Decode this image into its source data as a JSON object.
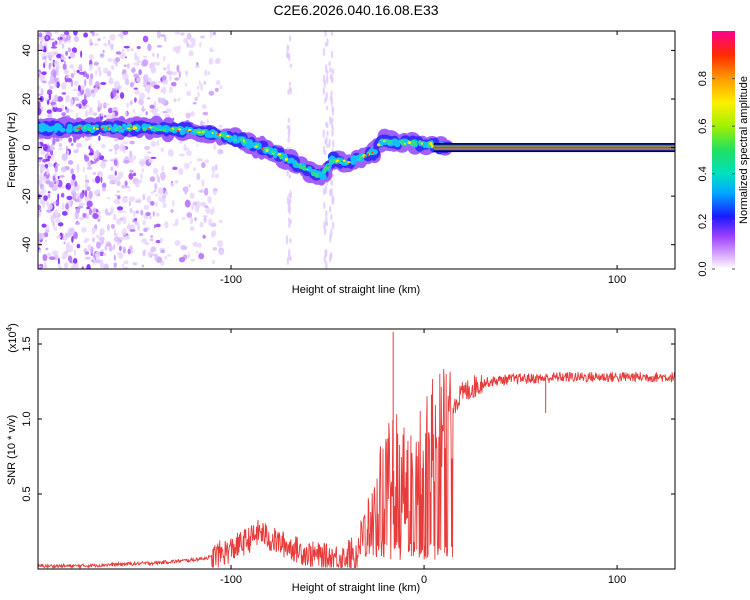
{
  "title": "C2E6.2026.040.16.08.E33",
  "chart_data": [
    {
      "type": "heatmap",
      "name": "spectrogram",
      "xlabel": "Height of straight line (km)",
      "ylabel": "Frequency (Hz)",
      "xlim": [
        -200,
        130
      ],
      "ylim": [
        -50,
        48
      ],
      "xticks": [
        -100,
        100
      ],
      "yticks": [
        -40,
        -20,
        0,
        20,
        40
      ],
      "colorbar": {
        "label": "Normalized spectral amplitude",
        "range": [
          0,
          1
        ],
        "ticks": [
          0.0,
          0.2,
          0.4,
          0.6,
          0.8
        ]
      },
      "ridge": [
        {
          "x": -200,
          "y": 8
        },
        {
          "x": -180,
          "y": 8
        },
        {
          "x": -160,
          "y": 8
        },
        {
          "x": -140,
          "y": 8
        },
        {
          "x": -120,
          "y": 7
        },
        {
          "x": -105,
          "y": 5
        },
        {
          "x": -95,
          "y": 3
        },
        {
          "x": -85,
          "y": 0
        },
        {
          "x": -75,
          "y": -3
        },
        {
          "x": -65,
          "y": -7
        },
        {
          "x": -58,
          "y": -10
        },
        {
          "x": -53,
          "y": -12
        },
        {
          "x": -48,
          "y": -5
        },
        {
          "x": -40,
          "y": -6
        },
        {
          "x": -32,
          "y": -4
        },
        {
          "x": -26,
          "y": -2
        },
        {
          "x": -22,
          "y": 3
        },
        {
          "x": -15,
          "y": 2
        },
        {
          "x": -5,
          "y": 2
        },
        {
          "x": 5,
          "y": 1
        },
        {
          "x": 12,
          "y": 0
        }
      ],
      "tone_line": {
        "x_start": 5,
        "x_end": 130,
        "y": 0
      }
    },
    {
      "type": "line",
      "name": "snr",
      "xlabel": "Height of straight line (km)",
      "ylabel": "SNR (10 * v/v)",
      "scale_label": "(x10",
      "scale_exponent": "4",
      "scale_suffix": ")",
      "xlim": [
        -200,
        130
      ],
      "ylim": [
        0,
        1.6
      ],
      "xticks": [
        -100,
        0,
        100
      ],
      "yticks": [
        0.5,
        1.0,
        1.5
      ],
      "color": "#e83b3b",
      "series": [
        {
          "name": "SNR",
          "x": [
            -200,
            -180,
            -160,
            -140,
            -120,
            -110,
            -100,
            -90,
            -85,
            -80,
            -70,
            -60,
            -50,
            -40,
            -35,
            -30,
            -25,
            -20,
            -17,
            -15,
            -12,
            -10,
            -5,
            0,
            5,
            10,
            15,
            20,
            25,
            30,
            40,
            50,
            60,
            70,
            80,
            90,
            100,
            110,
            120,
            130
          ],
          "y": [
            0.02,
            0.02,
            0.03,
            0.04,
            0.06,
            0.08,
            0.13,
            0.2,
            0.25,
            0.2,
            0.15,
            0.1,
            0.08,
            0.08,
            0.1,
            0.3,
            0.45,
            0.55,
            0.65,
            0.7,
            0.6,
            0.6,
            0.7,
            0.8,
            0.9,
            1.0,
            1.1,
            1.17,
            1.21,
            1.24,
            1.26,
            1.27,
            1.27,
            1.28,
            1.28,
            1.28,
            1.28,
            1.28,
            1.28,
            1.28
          ]
        }
      ],
      "spikes": [
        {
          "x": -16,
          "y": 1.58
        },
        {
          "x": 63,
          "y": 1.04
        }
      ]
    }
  ]
}
